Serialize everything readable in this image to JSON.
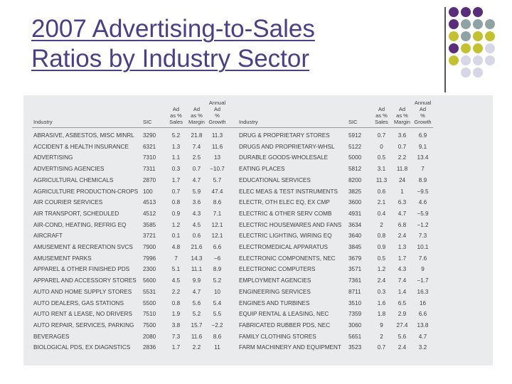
{
  "slide": {
    "title_line1": "2007 Advertising-to-Sales",
    "title_line2": "Ratios by Industry Sector"
  },
  "decoration": {
    "dot_colors": [
      [
        "#5a2d7a",
        "#5a2d7a",
        "#5a2d7a",
        ""
      ],
      [
        "#5a2d7a",
        "#8fa3a5",
        "#8fa3a5",
        "#8fa3a5"
      ],
      [
        "#c3c12f",
        "#8fa3a5",
        "#c3c12f",
        "#c3c12f"
      ],
      [
        "#5a2d7a",
        "#c3c12f",
        "#c3c12f",
        "#d6d6e6"
      ],
      [
        "#c3c12f",
        "#d6d6e6",
        "#d6d6e6",
        "#d6d6e6"
      ],
      [
        "",
        "#d6d6e6",
        "#d6d6e6",
        ""
      ]
    ]
  },
  "table": {
    "headers": {
      "industry": "Industry",
      "sic": "SIC",
      "ad_sales": [
        "Ad",
        "as %",
        "Sales"
      ],
      "ad_margin": [
        "Ad",
        "as %",
        "Margin"
      ],
      "growth": [
        "Annual",
        "Ad",
        "%",
        "Growth"
      ]
    },
    "rows": [
      [
        [
          "ABRASIVE, ASBESTOS, MISC MINRL",
          "3290",
          "5.2",
          "21.8",
          "11.3"
        ],
        [
          "DRUG & PROPRIETARY STORES",
          "5912",
          "0.7",
          "3.6",
          "6.9"
        ]
      ],
      [
        [
          "ACCIDENT & HEALTH INSURANCE",
          "6321",
          "1.3",
          "7.4",
          "11.6"
        ],
        [
          "DRUGS AND PROPRIETARY-WHSL",
          "5122",
          "0",
          "0.7",
          "9.1"
        ]
      ],
      [
        [
          "ADVERTISING",
          "7310",
          "1.1",
          "2.5",
          "13"
        ],
        [
          "DURABLE GOODS-WHOLESALE",
          "5000",
          "0.5",
          "2.2",
          "13.4"
        ]
      ],
      [
        [
          "ADVERTISING AGENCIES",
          "7311",
          "0.3",
          "0.7",
          "−10.7"
        ],
        [
          "EATING PLACES",
          "5812",
          "3.1",
          "11.8",
          "7"
        ]
      ],
      [
        [
          "AGRICULTURAL CHEMICALS",
          "2870",
          "1.7",
          "4.7",
          "5.7"
        ],
        [
          "EDUCATIONAL SERVICES",
          "8200",
          "11.3",
          "24",
          "8.9"
        ]
      ],
      [
        [
          "AGRICULTURE PRODUCTION-CROPS",
          "100",
          "0.7",
          "5.9",
          "47.4"
        ],
        [
          "ELEC MEAS & TEST INSTRUMENTS",
          "3825",
          "0.6",
          "1",
          "−9.5"
        ]
      ],
      [
        [
          "AIR COURIER SERVICES",
          "4513",
          "0.8",
          "3.6",
          "8.6"
        ],
        [
          "ELECTR, OTH ELEC EQ, EX CMP",
          "3600",
          "2.1",
          "6.3",
          "4.6"
        ]
      ],
      [
        [
          "AIR TRANSPORT, SCHEDULED",
          "4512",
          "0.9",
          "4.3",
          "7.1"
        ],
        [
          "ELECTRIC & OTHER SERV COMB",
          "4931",
          "0.4",
          "4.7",
          "−5.9"
        ]
      ],
      [
        [
          "AIR-COND, HEATING, REFRIG EQ",
          "3585",
          "1.2",
          "4.5",
          "12.1"
        ],
        [
          "ELECTRIC HOUSEWARES AND FANS",
          "3634",
          "2",
          "6.8",
          "−1.2"
        ]
      ],
      [
        [
          "AIRCRAFT",
          "3721",
          "0.1",
          "0.6",
          "12.1"
        ],
        [
          "ELECTRIC LIGHTING, WIRING EQ",
          "3640",
          "0.8",
          "2.4",
          "7.3"
        ]
      ],
      [
        [
          "AMUSEMENT & RECREATION SVCS",
          "7900",
          "4.8",
          "21.6",
          "6.6"
        ],
        [
          "ELECTROMEDICAL APPARATUS",
          "3845",
          "0.9",
          "1.3",
          "10.1"
        ]
      ],
      [
        [
          "AMUSEMENT PARKS",
          "7996",
          "7",
          "14.3",
          "−6"
        ],
        [
          "ELECTRONIC COMPONENTS, NEC",
          "3679",
          "0.5",
          "1.7",
          "7.6"
        ]
      ],
      [
        [
          "APPAREL & OTHER FINISHED PDS",
          "2300",
          "5.1",
          "11.1",
          "8.9"
        ],
        [
          "ELECTRONIC COMPUTERS",
          "3571",
          "1.2",
          "4.3",
          "9"
        ]
      ],
      [
        [
          "APPAREL AND ACCESSORY STORES",
          "5600",
          "4.5",
          "9.9",
          "5.2"
        ],
        [
          "EMPLOYMENT AGENCIES",
          "7361",
          "2.4",
          "7.4",
          "−1.7"
        ]
      ],
      [
        [
          "AUTO AND HOME SUPPLY STORES",
          "5531",
          "2.2",
          "4.7",
          "10"
        ],
        [
          "ENGINEERING SERVICES",
          "8711",
          "0.3",
          "1.4",
          "16.3"
        ]
      ],
      [
        [
          "AUTO DEALERS, GAS STATIONS",
          "5500",
          "0.8",
          "5.6",
          "5.4"
        ],
        [
          "ENGINES AND TURBINES",
          "3510",
          "1.6",
          "6.5",
          "16"
        ]
      ],
      [
        [
          "AUTO RENT & LEASE, NO DRIVERS",
          "7510",
          "1.9",
          "5.2",
          "5.5"
        ],
        [
          "EQUIP RENTAL & LEASING, NEC",
          "7359",
          "1.8",
          "2.9",
          "6.6"
        ]
      ],
      [
        [
          "AUTO REPAIR, SERVICES, PARKING",
          "7500",
          "3.8",
          "15.7",
          "−2.2"
        ],
        [
          "FABRICATED RUBBER PDS, NEC",
          "3060",
          "9",
          "27.4",
          "13.8"
        ]
      ],
      [
        [
          "BEVERAGES",
          "2080",
          "7.3",
          "11.6",
          "8.6"
        ],
        [
          "FAMILY CLOTHING STORES",
          "5651",
          "2",
          "5.6",
          "4.7"
        ]
      ],
      [
        [
          "BIOLOGICAL PDS, EX DIAGNSTICS",
          "2836",
          "1.7",
          "2.2",
          "11"
        ],
        [
          "FARM MACHINERY AND EQUIPMENT",
          "3523",
          "0.7",
          "2.4",
          "3.2"
        ]
      ]
    ]
  }
}
